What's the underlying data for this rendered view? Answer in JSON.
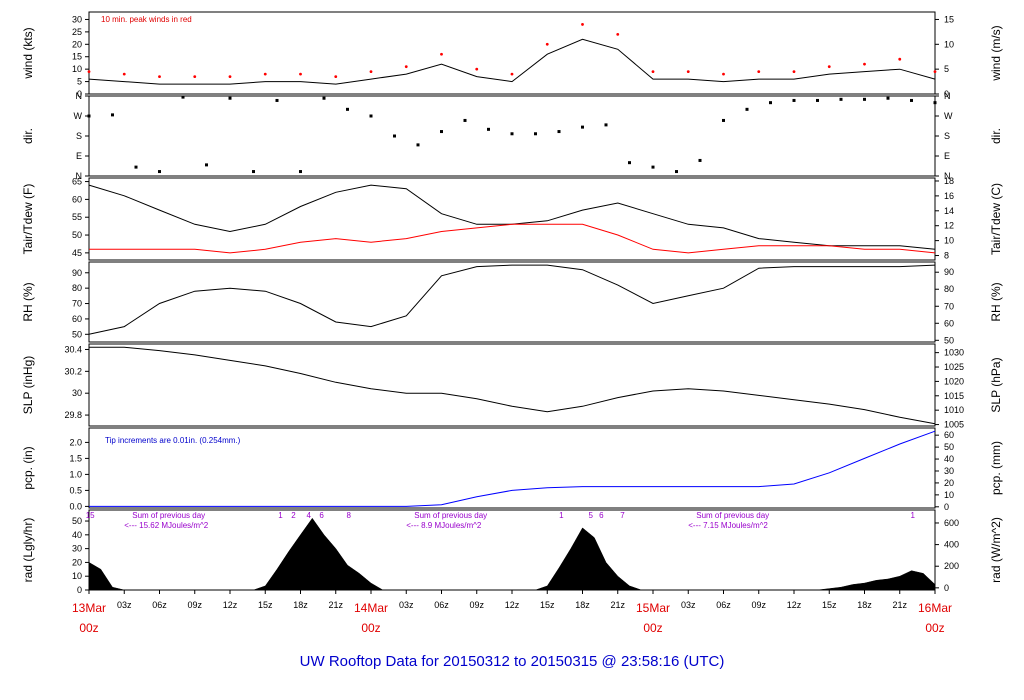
{
  "title": "UW Rooftop Data for 20150312  to  20150315 @ 23:58:16  (UTC)",
  "x_hour_labels": [
    "03z",
    "06z",
    "09z",
    "12z",
    "15z",
    "18z",
    "21z"
  ],
  "day_labels": [
    {
      "date": "13Mar",
      "time": "00z"
    },
    {
      "date": "14Mar",
      "time": "00z"
    },
    {
      "date": "15Mar",
      "time": "00z"
    },
    {
      "date": "16Mar",
      "time": "00z"
    }
  ],
  "chart_data": [
    {
      "type": "line",
      "ylabel": "wind (kts)",
      "ylabel_right": "wind (m/s)",
      "ylim": [
        0,
        33
      ],
      "yticks": [
        0,
        5,
        10,
        15,
        20,
        25,
        30
      ],
      "yticks_right": [
        0,
        5,
        10,
        15
      ],
      "annotation": "10 min. peak winds in red",
      "x_hours": [
        0,
        3,
        6,
        9,
        12,
        15,
        18,
        21,
        24,
        27,
        30,
        33,
        36,
        39,
        42,
        45,
        48,
        51,
        54,
        57,
        60,
        63,
        66,
        69,
        72
      ],
      "series": [
        {
          "values": [
            6,
            5,
            4,
            4,
            4,
            5,
            5,
            4,
            6,
            8,
            12,
            7,
            5,
            16,
            22,
            18,
            6,
            6,
            5,
            6,
            6,
            8,
            9,
            10,
            6
          ]
        },
        {
          "values": [
            9,
            8,
            7,
            7,
            7,
            8,
            8,
            7,
            9,
            11,
            16,
            10,
            8,
            20,
            28,
            24,
            9,
            9,
            8,
            9,
            9,
            11,
            12,
            14,
            9
          ],
          "style": "peak",
          "color": "#ff0000"
        }
      ]
    },
    {
      "type": "scatter",
      "ylabel": "dir.",
      "ylabel_right": "dir.",
      "yticks_labels": [
        "N",
        "E",
        "S",
        "W",
        "N"
      ],
      "ylim": [
        0,
        360
      ],
      "x_hours": [
        0,
        2,
        4,
        6,
        8,
        10,
        12,
        14,
        16,
        18,
        20,
        22,
        24,
        26,
        28,
        30,
        32,
        34,
        36,
        38,
        40,
        42,
        44,
        46,
        48,
        50,
        52,
        54,
        56,
        58,
        60,
        62,
        64,
        66,
        68,
        70,
        72
      ],
      "series": [
        {
          "values": [
            270,
            275,
            40,
            20,
            355,
            50,
            350,
            20,
            340,
            20,
            350,
            300,
            270,
            180,
            140,
            200,
            250,
            210,
            190,
            190,
            200,
            220,
            230,
            60,
            40,
            20,
            70,
            250,
            300,
            330,
            340,
            340,
            345,
            345,
            350,
            340,
            330
          ]
        }
      ]
    },
    {
      "type": "line",
      "ylabel": "Tair/Tdew (F)",
      "ylabel_right": "Tair/Tdew (C)",
      "ylim": [
        43,
        66
      ],
      "yticks": [
        45,
        50,
        55,
        60,
        65
      ],
      "yticks_right": [
        8,
        10,
        12,
        14,
        16,
        18
      ],
      "x_hours": [
        0,
        3,
        6,
        9,
        12,
        15,
        18,
        21,
        24,
        27,
        30,
        33,
        36,
        39,
        42,
        45,
        48,
        51,
        54,
        57,
        60,
        63,
        66,
        69,
        72
      ],
      "series": [
        {
          "values": [
            64,
            61,
            57,
            53,
            51,
            53,
            58,
            62,
            64,
            63,
            56,
            53,
            53,
            54,
            57,
            59,
            56,
            53,
            52,
            49,
            48,
            47,
            47,
            47,
            46
          ],
          "color": "#000000"
        },
        {
          "values": [
            46,
            46,
            46,
            46,
            45,
            46,
            48,
            49,
            48,
            49,
            51,
            52,
            53,
            53,
            53,
            50,
            46,
            45,
            46,
            47,
            47,
            47,
            46,
            46,
            45
          ],
          "color": "#ff0000"
        }
      ]
    },
    {
      "type": "line",
      "ylabel": "RH (%)",
      "ylabel_right": "RH (%)",
      "ylim": [
        45,
        97
      ],
      "yticks": [
        50,
        60,
        70,
        80,
        90
      ],
      "yticks_right": [
        50,
        60,
        70,
        80,
        90
      ],
      "x_hours": [
        0,
        3,
        6,
        9,
        12,
        15,
        18,
        21,
        24,
        27,
        30,
        33,
        36,
        39,
        42,
        45,
        48,
        51,
        54,
        57,
        60,
        63,
        66,
        69,
        72
      ],
      "series": [
        {
          "values": [
            50,
            55,
            70,
            78,
            80,
            78,
            70,
            58,
            55,
            62,
            88,
            94,
            95,
            95,
            92,
            82,
            70,
            75,
            80,
            93,
            94,
            94,
            94,
            94,
            95
          ]
        }
      ]
    },
    {
      "type": "line",
      "ylabel": "SLP (inHg)",
      "ylabel_right": "SLP (hPa)",
      "ylim": [
        29.7,
        30.45
      ],
      "yticks": [
        29.8,
        30.0,
        30.2,
        30.4
      ],
      "yticks_right": [
        1005,
        1010,
        1015,
        1020,
        1025,
        1030
      ],
      "x_hours": [
        0,
        3,
        6,
        9,
        12,
        15,
        18,
        21,
        24,
        27,
        30,
        33,
        36,
        39,
        42,
        45,
        48,
        51,
        54,
        57,
        60,
        63,
        66,
        69,
        72
      ],
      "series": [
        {
          "values": [
            30.42,
            30.42,
            30.39,
            30.35,
            30.3,
            30.25,
            30.18,
            30.1,
            30.04,
            30.0,
            30.0,
            29.95,
            29.88,
            29.83,
            29.88,
            29.96,
            30.02,
            30.04,
            30.02,
            29.98,
            29.94,
            29.9,
            29.85,
            29.78,
            29.72
          ]
        }
      ]
    },
    {
      "type": "line",
      "ylabel": "pcp. (in)",
      "ylabel_right": "pcp. (mm)",
      "ylim": [
        -0.05,
        2.45
      ],
      "yticks": [
        0.0,
        0.5,
        1.0,
        1.5,
        2.0
      ],
      "yticks_right": [
        0,
        10,
        20,
        30,
        40,
        50,
        60
      ],
      "annotation": "Tip increments are 0.01in. (0.254mm.)",
      "x_hours": [
        0,
        3,
        6,
        9,
        12,
        15,
        18,
        21,
        24,
        27,
        30,
        33,
        36,
        39,
        42,
        45,
        48,
        51,
        54,
        57,
        60,
        63,
        66,
        69,
        72
      ],
      "series": [
        {
          "values": [
            0,
            0,
            0,
            0,
            0,
            0,
            0,
            0,
            0,
            0,
            0.05,
            0.3,
            0.5,
            0.58,
            0.62,
            0.62,
            0.62,
            0.62,
            0.62,
            0.62,
            0.7,
            1.05,
            1.5,
            1.95,
            2.35
          ],
          "color": "#0000ff"
        }
      ]
    },
    {
      "type": "area",
      "ylabel": "rad (Lgly/hr)",
      "ylabel_right": "rad (W/m^2)",
      "ylim": [
        0,
        58
      ],
      "yticks": [
        0,
        10,
        20,
        30,
        40,
        50
      ],
      "yticks_right": [
        0,
        200,
        400,
        600
      ],
      "annotations": [
        {
          "text": "Sum of previous day",
          "x_hour": 3
        },
        {
          "text": "<--- 15.62 MJoules/m^2",
          "x_hour": 3
        },
        {
          "text": "Sum of previous day",
          "x_hour": 27
        },
        {
          "text": "<--- 8.9 MJoules/m^2",
          "x_hour": 27
        },
        {
          "text": "Sum of previous day",
          "x_hour": 51
        },
        {
          "text": "<--- 7.15 MJoules/m^2",
          "x_hour": 51
        }
      ],
      "hour_markers": [
        {
          "text": "15",
          "x_hour": 0.1
        },
        {
          "text": "1",
          "x_hour": 16.3
        },
        {
          "text": "2",
          "x_hour": 17.4
        },
        {
          "text": "4",
          "x_hour": 18.7
        },
        {
          "text": "6",
          "x_hour": 19.8
        },
        {
          "text": "8",
          "x_hour": 22.1
        },
        {
          "text": "1",
          "x_hour": 40.2
        },
        {
          "text": "5",
          "x_hour": 42.7
        },
        {
          "text": "6",
          "x_hour": 43.6
        },
        {
          "text": "7",
          "x_hour": 45.4
        },
        {
          "text": "1",
          "x_hour": 70.1
        }
      ],
      "x_hours": [
        0,
        1,
        2,
        3,
        4,
        5,
        6,
        7,
        8,
        9,
        10,
        11,
        12,
        13,
        14,
        15,
        16,
        17,
        18,
        19,
        20,
        21,
        22,
        23,
        24,
        25,
        26,
        27,
        28,
        29,
        30,
        31,
        32,
        33,
        34,
        35,
        36,
        37,
        38,
        39,
        40,
        41,
        42,
        43,
        44,
        45,
        46,
        47,
        48,
        49,
        50,
        51,
        52,
        53,
        54,
        55,
        56,
        57,
        58,
        59,
        60,
        61,
        62,
        63,
        64,
        65,
        66,
        67,
        68,
        69,
        70,
        71,
        72
      ],
      "series": [
        {
          "values": [
            20,
            15,
            2,
            0,
            0,
            0,
            0,
            0,
            0,
            0,
            0,
            0,
            0,
            0,
            0,
            3,
            15,
            28,
            40,
            52,
            40,
            30,
            18,
            12,
            5,
            0,
            0,
            0,
            0,
            0,
            0,
            0,
            0,
            0,
            0,
            0,
            0,
            0,
            0,
            3,
            16,
            30,
            45,
            38,
            20,
            10,
            3,
            0,
            0,
            0,
            0,
            0,
            0,
            0,
            0,
            0,
            0,
            0,
            0,
            0,
            0,
            0,
            0,
            1,
            2,
            4,
            5,
            7,
            8,
            10,
            14,
            12,
            4
          ],
          "color": "#000000"
        }
      ]
    }
  ]
}
